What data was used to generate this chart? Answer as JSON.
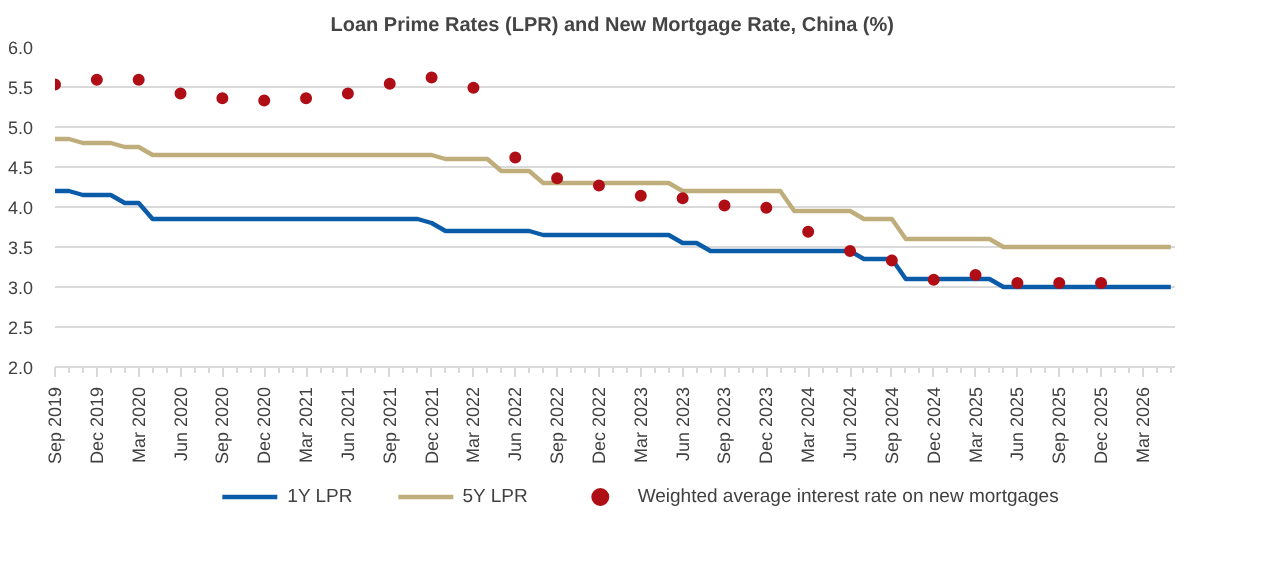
{
  "chart_data": {
    "type": "line",
    "title": "Loan Prime Rates (LPR) and New Mortgage  Rate, China (%)",
    "x": [
      "2019-09",
      "2019-10",
      "2019-11",
      "2019-12",
      "2020-01",
      "2020-02",
      "2020-03",
      "2020-04",
      "2020-05",
      "2020-06",
      "2020-07",
      "2020-08",
      "2020-09",
      "2020-10",
      "2020-11",
      "2020-12",
      "2021-01",
      "2021-02",
      "2021-03",
      "2021-04",
      "2021-05",
      "2021-06",
      "2021-07",
      "2021-08",
      "2021-09",
      "2021-10",
      "2021-11",
      "2021-12",
      "2022-01",
      "2022-02",
      "2022-03",
      "2022-04",
      "2022-05",
      "2022-06",
      "2022-07",
      "2022-08",
      "2022-09",
      "2022-10",
      "2022-11",
      "2022-12",
      "2023-01",
      "2023-02",
      "2023-03",
      "2023-04",
      "2023-05",
      "2023-06",
      "2023-07",
      "2023-08",
      "2023-09",
      "2023-10",
      "2023-11",
      "2023-12",
      "2024-01",
      "2024-02",
      "2024-03",
      "2024-04",
      "2024-05",
      "2024-06",
      "2024-07",
      "2024-08",
      "2024-09",
      "2024-10",
      "2024-11",
      "2024-12",
      "2025-01",
      "2025-02",
      "2025-03",
      "2025-04",
      "2025-05",
      "2025-06",
      "2025-07",
      "2025-08",
      "2025-09",
      "2025-10",
      "2025-11",
      "2025-12",
      "2026-01",
      "2026-02",
      "2026-03",
      "2026-04",
      "2026-05"
    ],
    "series": [
      {
        "name": "1Y LPR",
        "color": "#0a5ca8",
        "values": [
          4.2,
          4.2,
          4.15,
          4.15,
          4.15,
          4.05,
          4.05,
          3.85,
          3.85,
          3.85,
          3.85,
          3.85,
          3.85,
          3.85,
          3.85,
          3.85,
          3.85,
          3.85,
          3.85,
          3.85,
          3.85,
          3.85,
          3.85,
          3.85,
          3.85,
          3.85,
          3.85,
          3.8,
          3.7,
          3.7,
          3.7,
          3.7,
          3.7,
          3.7,
          3.7,
          3.65,
          3.65,
          3.65,
          3.65,
          3.65,
          3.65,
          3.65,
          3.65,
          3.65,
          3.65,
          3.55,
          3.55,
          3.45,
          3.45,
          3.45,
          3.45,
          3.45,
          3.45,
          3.45,
          3.45,
          3.45,
          3.45,
          3.45,
          3.35,
          3.35,
          3.35,
          3.1,
          3.1,
          3.1,
          3.1,
          3.1,
          3.1,
          3.1,
          3.0,
          3.0,
          3.0,
          3.0,
          3.0,
          3.0,
          3.0,
          3.0,
          3.0,
          3.0,
          3.0,
          3.0,
          3.0
        ]
      },
      {
        "name": "5Y LPR",
        "color": "#bfae7c",
        "values": [
          4.85,
          4.85,
          4.8,
          4.8,
          4.8,
          4.75,
          4.75,
          4.65,
          4.65,
          4.65,
          4.65,
          4.65,
          4.65,
          4.65,
          4.65,
          4.65,
          4.65,
          4.65,
          4.65,
          4.65,
          4.65,
          4.65,
          4.65,
          4.65,
          4.65,
          4.65,
          4.65,
          4.65,
          4.6,
          4.6,
          4.6,
          4.6,
          4.45,
          4.45,
          4.45,
          4.3,
          4.3,
          4.3,
          4.3,
          4.3,
          4.3,
          4.3,
          4.3,
          4.3,
          4.3,
          4.2,
          4.2,
          4.2,
          4.2,
          4.2,
          4.2,
          4.2,
          4.2,
          3.95,
          3.95,
          3.95,
          3.95,
          3.95,
          3.85,
          3.85,
          3.85,
          3.6,
          3.6,
          3.6,
          3.6,
          3.6,
          3.6,
          3.6,
          3.5,
          3.5,
          3.5,
          3.5,
          3.5,
          3.5,
          3.5,
          3.5,
          3.5,
          3.5,
          3.5,
          3.5,
          3.5
        ]
      },
      {
        "name": "Weighted average interest rate on new mortgages",
        "type": "scatter",
        "marker": "circle",
        "color": "#b00e16",
        "x": [
          "2019-09",
          "2019-12",
          "2020-03",
          "2020-06",
          "2020-09",
          "2020-12",
          "2021-03",
          "2021-06",
          "2021-09",
          "2021-12",
          "2022-03",
          "2022-06",
          "2022-09",
          "2022-12",
          "2023-03",
          "2023-06",
          "2023-09",
          "2023-12",
          "2024-03",
          "2024-06",
          "2024-09",
          "2024-12",
          "2025-03",
          "2025-06",
          "2025-09",
          "2025-12"
        ],
        "values": [
          5.53,
          5.59,
          5.59,
          5.42,
          5.36,
          5.33,
          5.36,
          5.42,
          5.54,
          5.62,
          5.49,
          4.62,
          4.36,
          4.27,
          4.14,
          4.11,
          4.02,
          3.99,
          3.69,
          3.45,
          3.33,
          3.09,
          3.15,
          3.05,
          3.05,
          3.05
        ]
      }
    ],
    "xlim": [
      "2019-09",
      "2026-05"
    ],
    "xticks": [
      {
        "value": "2019-09",
        "label": "Sep 2019"
      },
      {
        "value": "2019-12",
        "label": "Dec 2019"
      },
      {
        "value": "2020-03",
        "label": "Mar 2020"
      },
      {
        "value": "2020-06",
        "label": "Jun 2020"
      },
      {
        "value": "2020-09",
        "label": "Sep 2020"
      },
      {
        "value": "2020-12",
        "label": "Dec 2020"
      },
      {
        "value": "2021-03",
        "label": "Mar 2021"
      },
      {
        "value": "2021-06",
        "label": "Jun 2021"
      },
      {
        "value": "2021-09",
        "label": "Sep 2021"
      },
      {
        "value": "2021-12",
        "label": "Dec 2021"
      },
      {
        "value": "2022-03",
        "label": "Mar 2022"
      },
      {
        "value": "2022-06",
        "label": "Jun 2022"
      },
      {
        "value": "2022-09",
        "label": "Sep 2022"
      },
      {
        "value": "2022-12",
        "label": "Dec 2022"
      },
      {
        "value": "2023-03",
        "label": "Mar 2023"
      },
      {
        "value": "2023-06",
        "label": "Jun 2023"
      },
      {
        "value": "2023-09",
        "label": "Sep 2023"
      },
      {
        "value": "2023-12",
        "label": "Dec 2023"
      },
      {
        "value": "2024-03",
        "label": "Mar 2024"
      },
      {
        "value": "2024-06",
        "label": "Jun 2024"
      },
      {
        "value": "2024-09",
        "label": "Sep 2024"
      },
      {
        "value": "2024-12",
        "label": "Dec 2024"
      },
      {
        "value": "2025-03",
        "label": "Mar 2025"
      },
      {
        "value": "2025-06",
        "label": "Jun 2025"
      },
      {
        "value": "2025-09",
        "label": "Sep 2025"
      },
      {
        "value": "2025-12",
        "label": "Dec 2025"
      },
      {
        "value": "2026-03",
        "label": "Mar 2026"
      }
    ],
    "ylim": [
      2.0,
      6.0
    ],
    "yticks": [
      {
        "value": 2,
        "label": "2.0"
      },
      {
        "value": 2.5,
        "label": "2.5"
      },
      {
        "value": 3,
        "label": "3.0"
      },
      {
        "value": 3.5,
        "label": "3.5"
      },
      {
        "value": 4,
        "label": "4.0"
      },
      {
        "value": 4.5,
        "label": "4.5"
      },
      {
        "value": 5,
        "label": "5.0"
      },
      {
        "value": 5.5,
        "label": "5.5"
      },
      {
        "value": 6,
        "label": "6.0"
      }
    ],
    "grid": "y",
    "legend": "bottom",
    "marker": "none",
    "line_style": "solid"
  }
}
